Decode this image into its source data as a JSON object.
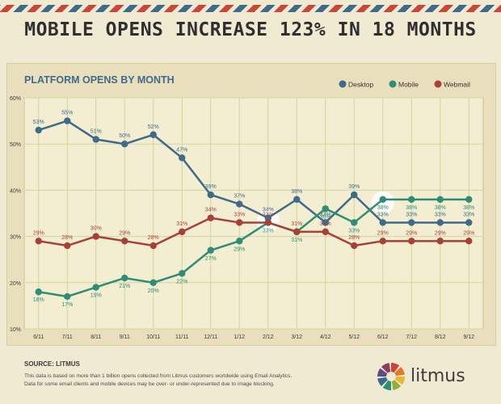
{
  "headline": "MOBILE OPENS INCREASE 123% IN 18 MONTHS",
  "colors": {
    "desktop": "#3f6a8a",
    "mobile": "#2f8d76",
    "webmail": "#a8403a",
    "grid": "#cfd79a",
    "title": "#3e6b8c"
  },
  "chart_data": {
    "type": "line",
    "title": "PLATFORM OPENS BY MONTH",
    "xlabel": "",
    "ylabel": "",
    "categories": [
      "6/11",
      "7/11",
      "8/11",
      "9/11",
      "10/11",
      "11/11",
      "12/11",
      "1/12",
      "2/12",
      "3/12",
      "4/12",
      "5/12",
      "6/12",
      "7/12",
      "8/12",
      "9/12"
    ],
    "ylim": [
      10,
      60
    ],
    "yticks": [
      "10%",
      "20%",
      "30%",
      "40%",
      "50%",
      "60%"
    ],
    "grid": true,
    "legend_position": "top-right",
    "series": [
      {
        "name": "Desktop",
        "values": [
          53,
          55,
          51,
          50,
          52,
          47,
          39,
          37,
          34,
          38,
          33,
          39,
          33,
          33,
          33,
          33
        ]
      },
      {
        "name": "Mobile",
        "values": [
          18,
          17,
          19,
          21,
          20,
          22,
          27,
          29,
          33,
          31,
          36,
          33,
          38,
          38,
          38,
          38
        ]
      },
      {
        "name": "Webmail",
        "values": [
          29,
          28,
          30,
          29,
          28,
          31,
          34,
          33,
          33,
          31,
          31,
          28,
          29,
          29,
          29,
          29
        ]
      }
    ]
  },
  "footer": {
    "source": "SOURCE: LITMUS",
    "note_line1": "This data is based on more than 1 billion opens collected from Litmus customers worldwide using Email Analytics.",
    "note_line2": "Data for some email clients and mobile devices may be over- or under-represented due to image blocking."
  },
  "brand": {
    "name": "litmus",
    "logo_icon": "litmus-wheel-icon",
    "wheel_colors": [
      "#c8473a",
      "#e07a2f",
      "#e9b63a",
      "#8fae3e",
      "#2f8d76",
      "#3f6a8a",
      "#5e4c8a",
      "#8a3d5e"
    ]
  }
}
